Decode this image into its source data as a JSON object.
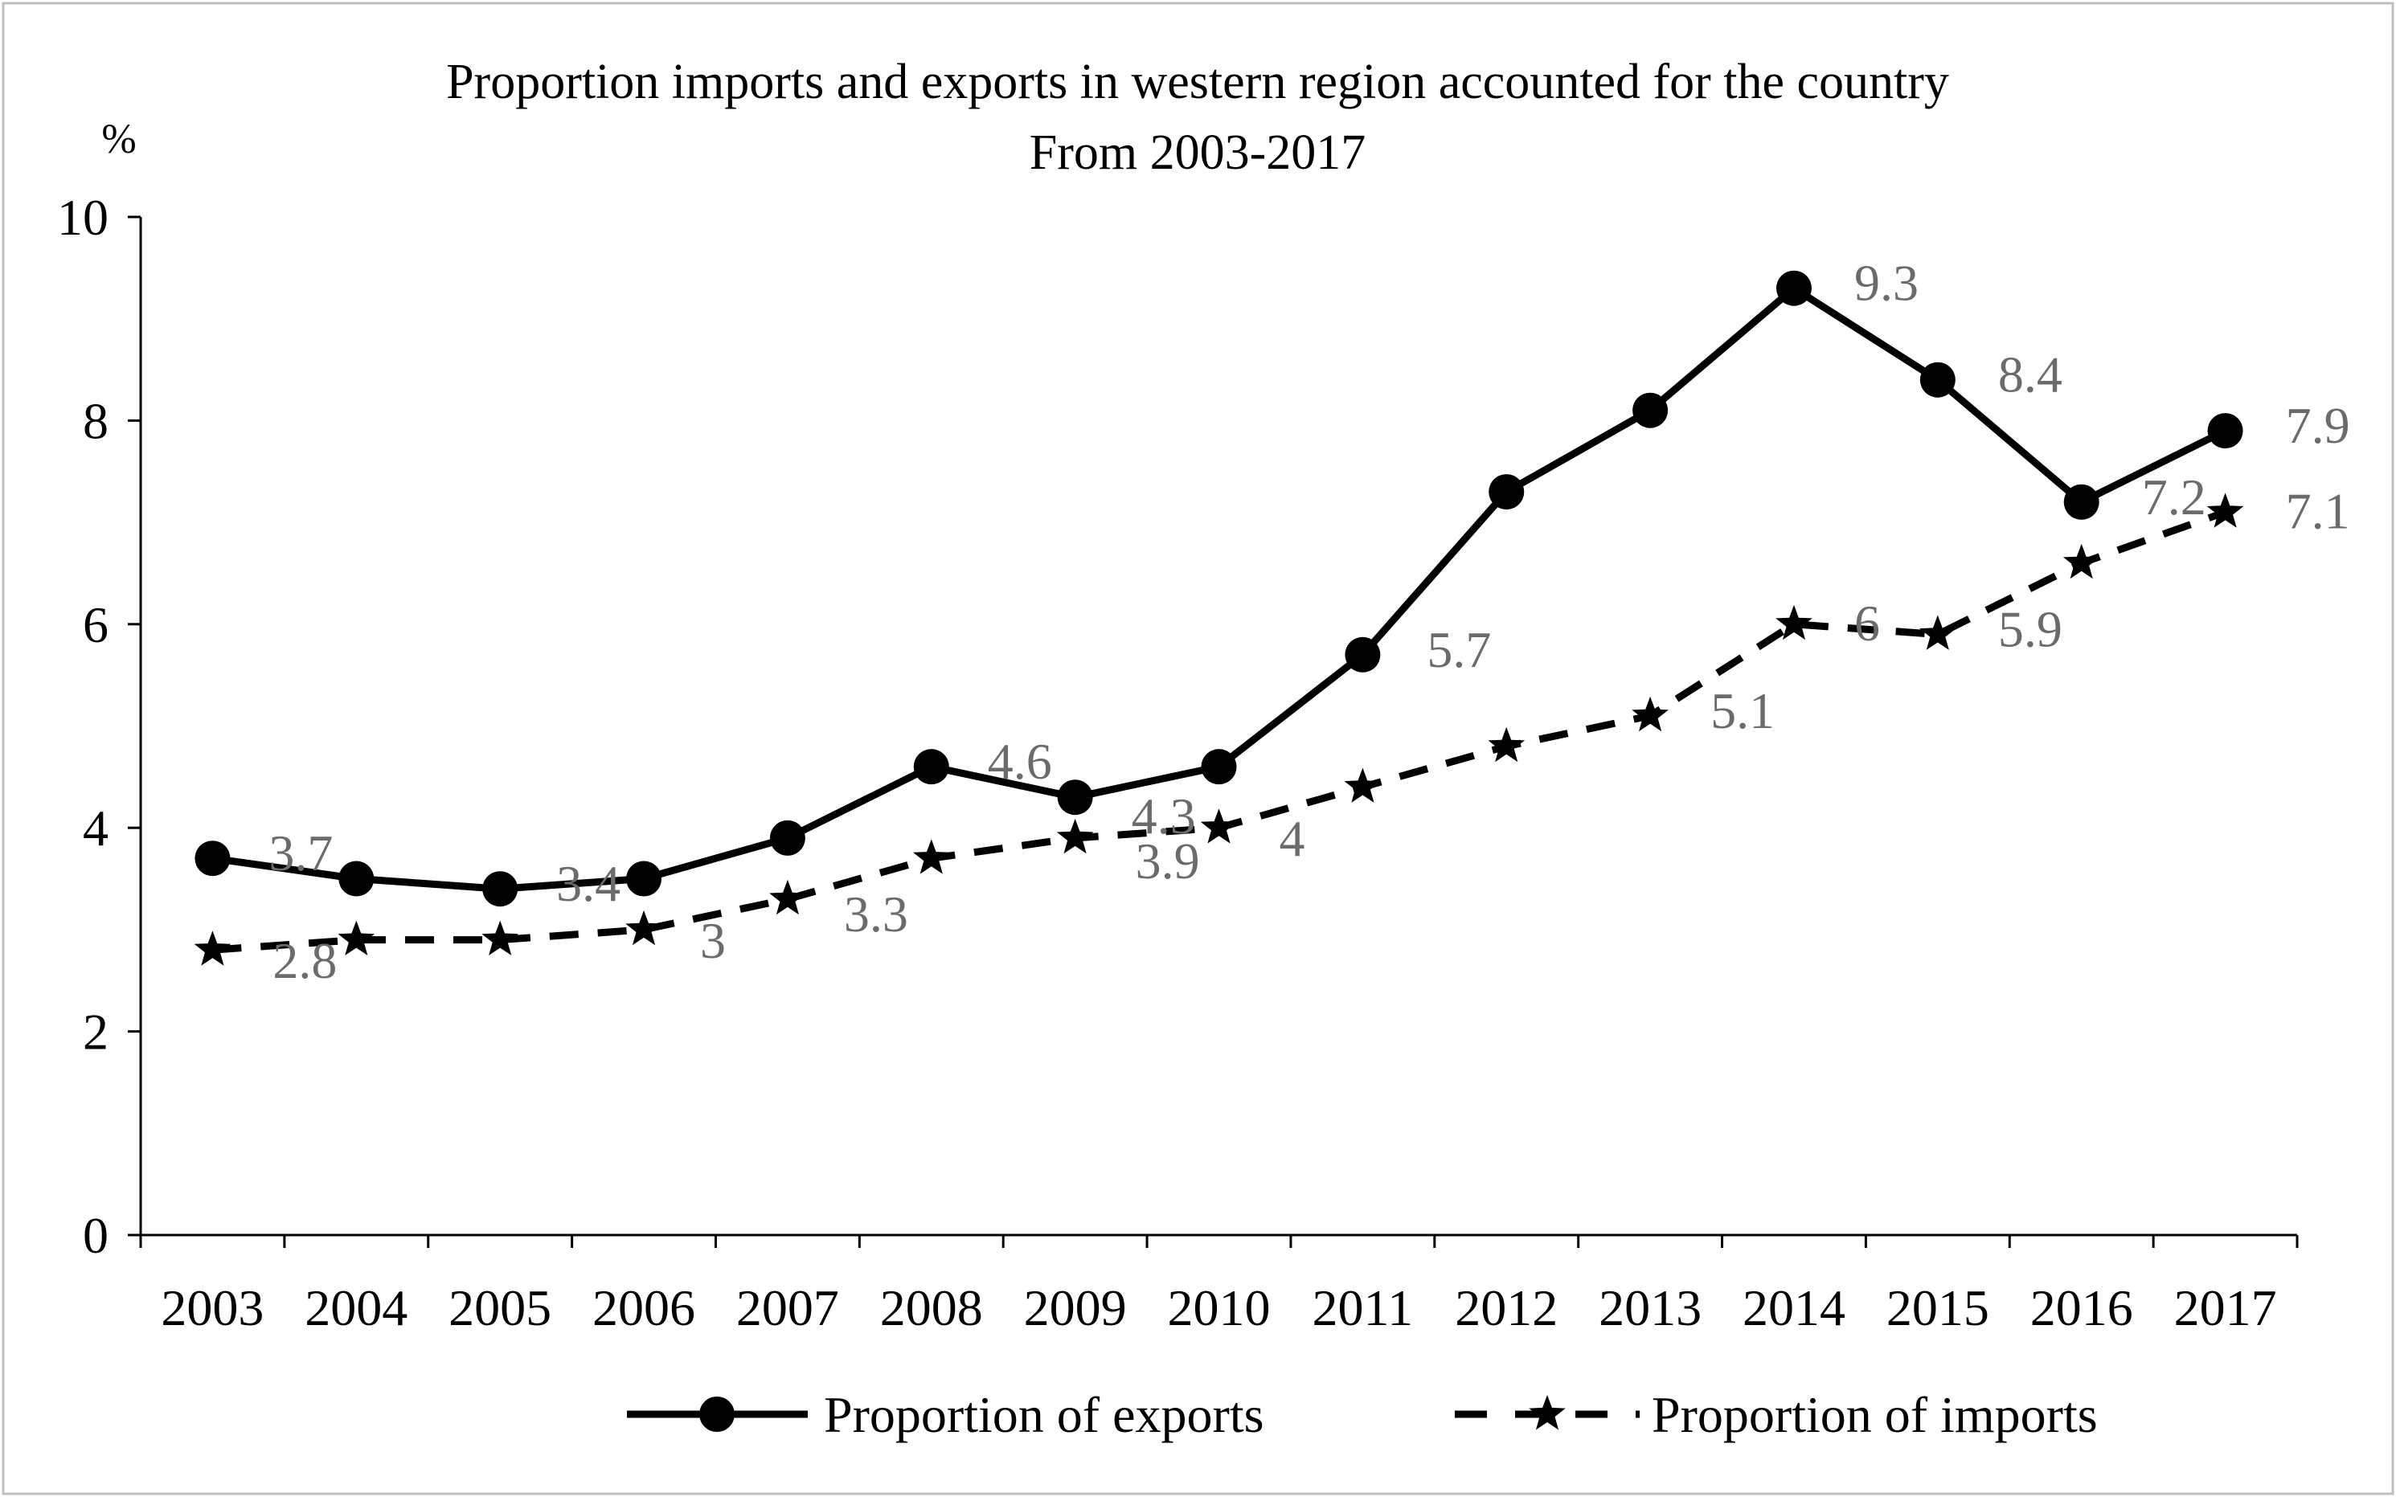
{
  "chart_data": {
    "type": "line",
    "title": "Proportion imports and exports in western region accounted for the country",
    "subtitle": "From 2003-2017",
    "ylabel": "%",
    "xlabel": "",
    "ylim": [
      0,
      10
    ],
    "yticks": [
      0,
      2,
      4,
      6,
      8,
      10
    ],
    "grid": false,
    "legend_position": "bottom",
    "categories": [
      "2003",
      "2004",
      "2005",
      "2006",
      "2007",
      "2008",
      "2009",
      "2010",
      "2011",
      "2012",
      "2013",
      "2014",
      "2015",
      "2016",
      "2017"
    ],
    "series": [
      {
        "name": "Proportion of exports",
        "style": "solid",
        "marker": "circle",
        "color": "#000000",
        "values": [
          3.7,
          3.5,
          3.4,
          3.5,
          3.9,
          4.6,
          4.3,
          4.6,
          5.7,
          7.3,
          8.1,
          9.3,
          8.4,
          7.2,
          7.9
        ],
        "data_labels": [
          "3.7",
          "",
          "3.4",
          "",
          "",
          "4.6",
          "4.3",
          "",
          "5.7",
          "",
          "",
          "9.3",
          "8.4",
          "7.2",
          "7.9"
        ]
      },
      {
        "name": "Proportion of imports",
        "style": "dashed",
        "marker": "star",
        "color": "#000000",
        "values": [
          2.8,
          2.9,
          2.9,
          3.0,
          3.3,
          3.7,
          3.9,
          4.0,
          4.4,
          4.8,
          5.1,
          6.0,
          5.9,
          6.6,
          7.1
        ],
        "data_labels": [
          "2.8",
          "",
          "",
          "3",
          "3.3",
          "",
          "3.9",
          "4",
          "",
          "",
          "5.1",
          "6",
          "5.9",
          "",
          "7.1"
        ]
      }
    ],
    "label_color": "#6b6b6b"
  }
}
